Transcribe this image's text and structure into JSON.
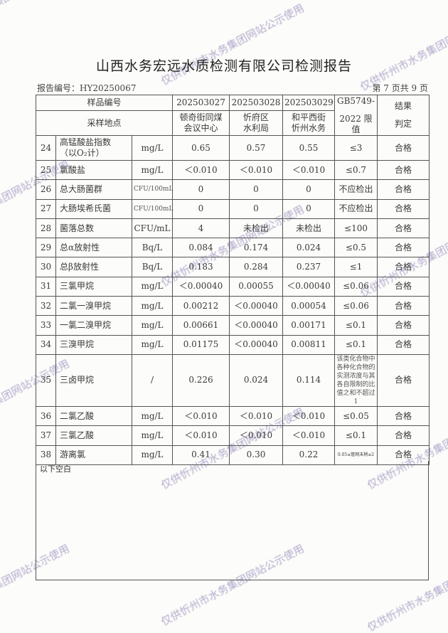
{
  "title": "山西水务宏远水质检测有限公司检测报告",
  "report_no": "报告编号：HY20250067",
  "page_info": "第 7 页共 9 页",
  "watermark": "仅供忻州市水务集团网站公示使用",
  "header": {
    "sample_no_label": "样品编号",
    "site_label": "采样地点",
    "samples": [
      {
        "id": "202503027",
        "site_line1": "顿奇街同煤",
        "site_line2": "会议中心"
      },
      {
        "id": "202503028",
        "site_line1": "忻府区",
        "site_line2": "水利局"
      },
      {
        "id": "202503029",
        "site_line1": "和平西街",
        "site_line2": "忻州水务"
      }
    ],
    "limit_line1": "GB5749-",
    "limit_line2": "2022 限值",
    "result_line1": "结果",
    "result_line2": "判定"
  },
  "rows": [
    {
      "no": "24",
      "name": "高锰酸盐指数\n（以O₂计）",
      "unit": "mg/L",
      "v1": "0.65",
      "v2": "0.57",
      "v3": "0.55",
      "limit": "≤3",
      "result": "合格"
    },
    {
      "no": "25",
      "name": "氯酸盐",
      "unit": "mg/L",
      "v1": "＜0.010",
      "v2": "＜0.010",
      "v3": "＜0.010",
      "limit": "≤0.7",
      "result": "合格"
    },
    {
      "no": "26",
      "name": "总大肠菌群",
      "unit": "CFU/100mL",
      "v1": "0",
      "v2": "0",
      "v3": "0",
      "limit": "不应检出",
      "result": "合格"
    },
    {
      "no": "27",
      "name": "大肠埃希氏菌",
      "unit": "CFU/100mL",
      "v1": "0",
      "v2": "0",
      "v3": "0",
      "limit": "不应检出",
      "result": "合格"
    },
    {
      "no": "28",
      "name": "菌落总数",
      "unit": "CFU/mL",
      "v1": "4",
      "v2": "未检出",
      "v3": "未检出",
      "limit": "≤100",
      "result": "合格"
    },
    {
      "no": "29",
      "name": "总α放射性",
      "unit": "Bq/L",
      "v1": "0.084",
      "v2": "0.174",
      "v3": "0.024",
      "limit": "≤0.5",
      "result": "合格"
    },
    {
      "no": "30",
      "name": "总β放射性",
      "unit": "Bq/L",
      "v1": "0.183",
      "v2": "0.284",
      "v3": "0.237",
      "limit": "≤1",
      "result": "合格"
    },
    {
      "no": "31",
      "name": "三氯甲烷",
      "unit": "mg/L",
      "v1": "＜0.00040",
      "v2": "0.00055",
      "v3": "＜0.00040",
      "limit": "≤0.06",
      "result": "合格"
    },
    {
      "no": "32",
      "name": "二氯一溴甲烷",
      "unit": "mg/L",
      "v1": "0.00212",
      "v2": "＜0.00040",
      "v3": "0.00054",
      "limit": "≤0.06",
      "result": "合格"
    },
    {
      "no": "33",
      "name": "一氯二溴甲烷",
      "unit": "mg/L",
      "v1": "0.00661",
      "v2": "＜0.00040",
      "v3": "0.00171",
      "limit": "≤0.1",
      "result": "合格"
    },
    {
      "no": "34",
      "name": "三溴甲烷",
      "unit": "mg/L",
      "v1": "0.01175",
      "v2": "＜0.00040",
      "v3": "0.00811",
      "limit": "≤0.1",
      "result": "合格"
    },
    {
      "no": "35",
      "name": "三卤甲烷",
      "unit": "/",
      "v1": "0.226",
      "v2": "0.024",
      "v3": "0.114",
      "limit": "该类化合物中各种化合物的实测浓度与其各自限制的比值之和不超过1",
      "result": "合格"
    },
    {
      "no": "36",
      "name": "二氯乙酸",
      "unit": "mg/L",
      "v1": "＜0.010",
      "v2": "＜0.010",
      "v3": "＜0.010",
      "limit": "≤0.05",
      "result": "合格"
    },
    {
      "no": "37",
      "name": "三氯乙酸",
      "unit": "mg/L",
      "v1": "＜0.010",
      "v2": "＜0.010",
      "v3": "＜0.010",
      "limit": "≤0.1",
      "result": "合格"
    },
    {
      "no": "38",
      "name": "游离氯",
      "unit": "mg/L",
      "v1": "0.41",
      "v2": "0.30",
      "v3": "0.22",
      "limit": "0.05≤管网末梢≤2",
      "result": "合格"
    }
  ],
  "footer_note": "以下空白"
}
